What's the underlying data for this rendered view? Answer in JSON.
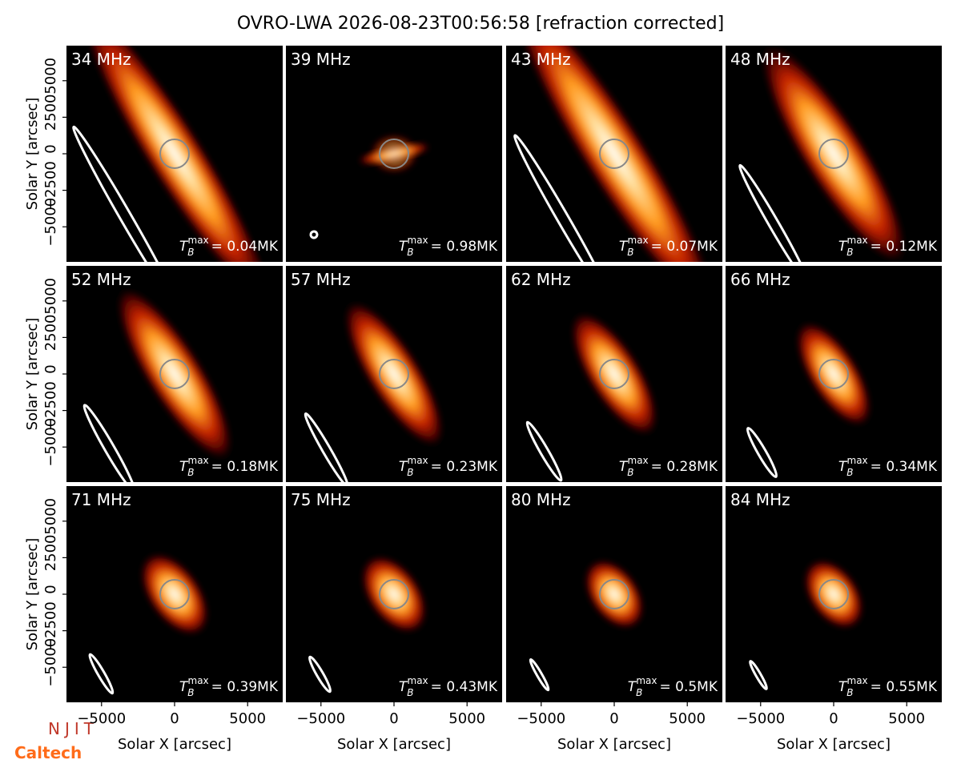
{
  "title": "OVRO-LWA 2026-08-23T00:56:58 [refraction corrected]",
  "x_label": "Solar X [arcsec]",
  "y_label": "Solar Y [arcsec]",
  "xlim": [
    -7400,
    7400
  ],
  "ylim": [
    -7400,
    7400
  ],
  "xticks": [
    {
      "value": -5000,
      "label": "−5000"
    },
    0,
    5000
  ],
  "yticks": [
    {
      "value": -5000,
      "label": "−5000"
    },
    {
      "value": -2500,
      "label": "−2500"
    },
    0,
    2500,
    5000
  ],
  "tb_symbol": "T",
  "tb_sub": "B",
  "tb_sup": "max",
  "panels": [
    {
      "label": "34 MHz",
      "tb": "= 0.04MK"
    },
    {
      "label": "39 MHz",
      "tb": "= 0.98MK"
    },
    {
      "label": "43 MHz",
      "tb": "= 0.07MK"
    },
    {
      "label": "48 MHz",
      "tb": "= 0.12MK"
    },
    {
      "label": "52 MHz",
      "tb": "= 0.18MK"
    },
    {
      "label": "57 MHz",
      "tb": "= 0.23MK"
    },
    {
      "label": "62 MHz",
      "tb": "= 0.28MK"
    },
    {
      "label": "66 MHz",
      "tb": "= 0.34MK"
    },
    {
      "label": "71 MHz",
      "tb": "= 0.39MK"
    },
    {
      "label": "75 MHz",
      "tb": "= 0.43MK"
    },
    {
      "label": "80 MHz",
      "tb": "= 0.5MK"
    },
    {
      "label": "84 MHz",
      "tb": "= 0.55MK"
    }
  ],
  "logos": {
    "njit": "NJIT",
    "caltech": "Caltech"
  }
}
